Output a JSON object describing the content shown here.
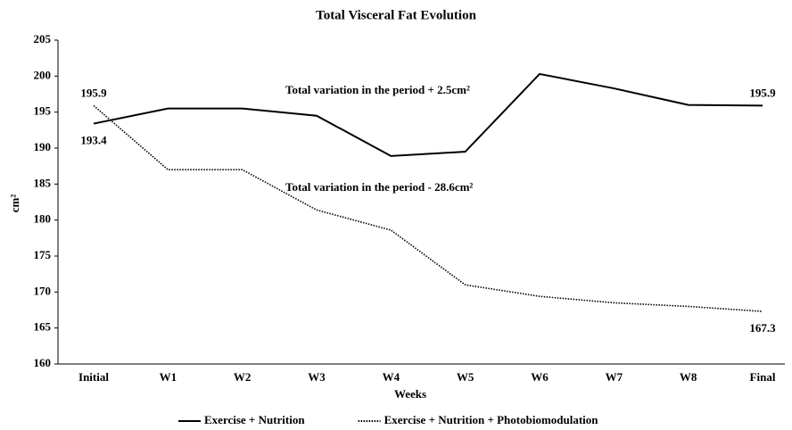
{
  "chart_data": {
    "type": "line",
    "title": "Total Visceral Fat Evolution",
    "x_label": "Weeks",
    "y_label": "cm²",
    "categories": [
      "Initial",
      "W1",
      "W2",
      "W3",
      "W4",
      "W5",
      "W6",
      "W7",
      "W8",
      "Final"
    ],
    "series": [
      {
        "name": "Exercise + Nutrition",
        "color": "#000000",
        "style": "solid",
        "values": [
          193.4,
          195.5,
          195.5,
          194.5,
          188.9,
          189.5,
          200.3,
          198.3,
          196.0,
          195.9
        ]
      },
      {
        "name": "Exercise + Nutrition + Photobiomodulation",
        "color": "#000000",
        "style": "dotted",
        "values": [
          195.9,
          187.0,
          187.0,
          181.4,
          178.6,
          171.0,
          169.4,
          168.5,
          168.0,
          167.3
        ]
      }
    ],
    "annotations": [
      "Total variation in the period + 2.5cm²",
      "Total variation in the period - 28.6cm²"
    ],
    "ylim": [
      160,
      205
    ],
    "yticks": [
      160,
      165,
      170,
      175,
      180,
      185,
      190,
      195,
      200,
      205
    ],
    "grid": false,
    "legend": "bottom"
  }
}
